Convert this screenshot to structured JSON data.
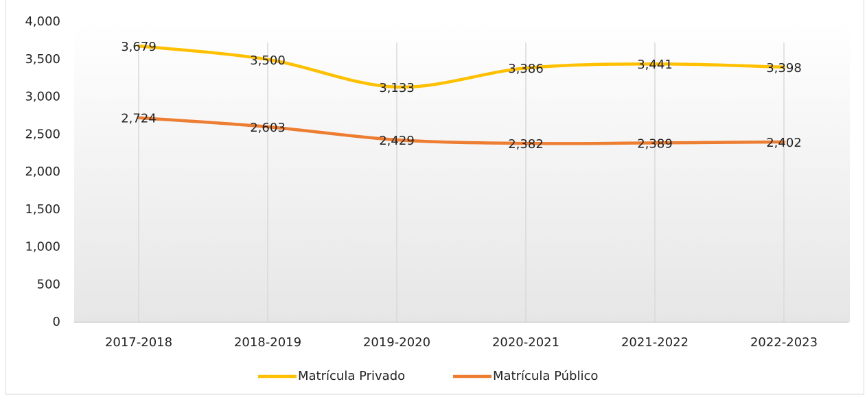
{
  "chart_data": {
    "type": "line",
    "categories": [
      "2017-2018",
      "2018-2019",
      "2019-2020",
      "2020-2021",
      "2021-2022",
      "2022-2023"
    ],
    "series": [
      {
        "name": "Matrícula Privado",
        "color": "#FFC000",
        "values": [
          3679,
          3500,
          3133,
          3386,
          3441,
          3398
        ],
        "value_labels": [
          "3,679",
          "3,500",
          "3,133",
          "3,386",
          "3,441",
          "3,398"
        ]
      },
      {
        "name": "Matrícula Público",
        "color": "#ED7D31",
        "values": [
          2724,
          2603,
          2429,
          2382,
          2389,
          2402
        ],
        "value_labels": [
          "2,724",
          "2,603",
          "2,429",
          "2,382",
          "2,389",
          "2,402"
        ]
      }
    ],
    "ylim": [
      0,
      4000
    ],
    "yticks": [
      0,
      500,
      {
        "value": 1000,
        "label": "1,000"
      },
      {
        "value": 1500,
        "label": "1,500"
      },
      {
        "value": 2000,
        "label": "2,000"
      },
      {
        "value": 2500,
        "label": "2,500"
      },
      {
        "value": 3000,
        "label": "3,000"
      },
      {
        "value": 3500,
        "label": "3,500"
      },
      {
        "value": 4000,
        "label": "4,000"
      }
    ],
    "grid": "x",
    "smooth": true,
    "legend": "bottom"
  }
}
